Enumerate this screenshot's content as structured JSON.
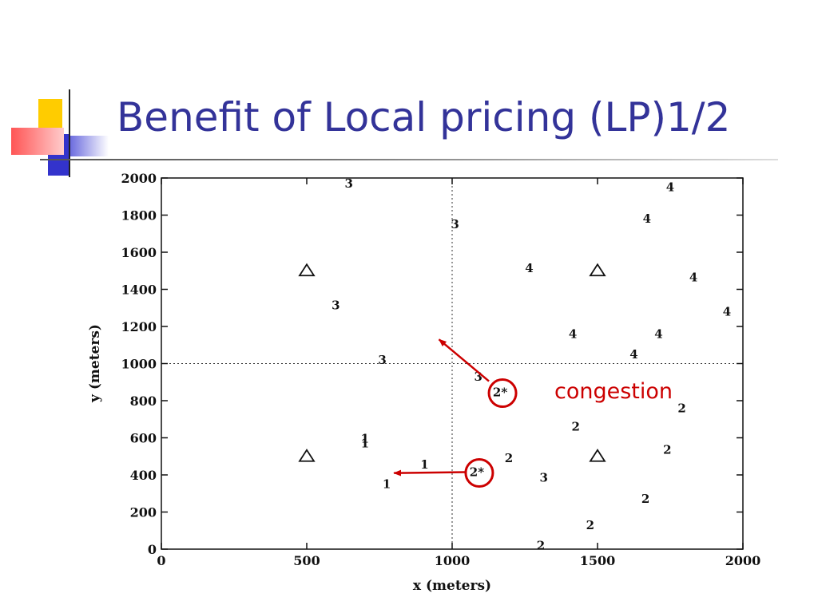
{
  "slide": {
    "title": "Benefit of Local pricing (LP)1/2"
  },
  "colors": {
    "title": "#333399",
    "annotation": "#cc0000"
  },
  "chart_data": {
    "type": "scatter",
    "xlabel": "x (meters)",
    "ylabel": "y (meters)",
    "xlim": [
      0,
      2000
    ],
    "ylim": [
      0,
      2000
    ],
    "x_ticks": [
      "0",
      "500",
      "1000",
      "1500",
      "2000"
    ],
    "y_ticks": [
      "0",
      "200",
      "400",
      "600",
      "800",
      "1000",
      "1200",
      "1400",
      "1600",
      "1800",
      "2000"
    ],
    "grid": "dotted lines at x=1000 and y=1000",
    "markers": [
      {
        "x": 645,
        "y": 1970,
        "label": "3"
      },
      {
        "x": 1010,
        "y": 1750,
        "label": "3"
      },
      {
        "x": 600,
        "y": 1315,
        "label": "3"
      },
      {
        "x": 760,
        "y": 1020,
        "label": "3"
      },
      {
        "x": 1090,
        "y": 930,
        "label": "3"
      },
      {
        "x": 1315,
        "y": 385,
        "label": "3"
      },
      {
        "x": 1750,
        "y": 1950,
        "label": "4"
      },
      {
        "x": 1670,
        "y": 1780,
        "label": "4"
      },
      {
        "x": 1265,
        "y": 1515,
        "label": "4"
      },
      {
        "x": 1830,
        "y": 1465,
        "label": "4"
      },
      {
        "x": 1945,
        "y": 1280,
        "label": "4"
      },
      {
        "x": 1415,
        "y": 1160,
        "label": "4"
      },
      {
        "x": 1710,
        "y": 1160,
        "label": "4"
      },
      {
        "x": 1625,
        "y": 1050,
        "label": "4"
      },
      {
        "x": 1165,
        "y": 845,
        "label": "2*"
      },
      {
        "x": 1085,
        "y": 415,
        "label": "2*"
      },
      {
        "x": 1195,
        "y": 490,
        "label": "2"
      },
      {
        "x": 1425,
        "y": 660,
        "label": "2"
      },
      {
        "x": 1790,
        "y": 760,
        "label": "2"
      },
      {
        "x": 1740,
        "y": 535,
        "label": "2"
      },
      {
        "x": 1665,
        "y": 270,
        "label": "2"
      },
      {
        "x": 1475,
        "y": 130,
        "label": "2"
      },
      {
        "x": 1305,
        "y": 20,
        "label": "2"
      },
      {
        "x": 700,
        "y": 595,
        "label": "1"
      },
      {
        "x": 700,
        "y": 570,
        "label": "1"
      },
      {
        "x": 905,
        "y": 455,
        "label": "1"
      },
      {
        "x": 775,
        "y": 350,
        "label": "1"
      }
    ],
    "triangles": [
      {
        "x": 500,
        "y": 1500
      },
      {
        "x": 1500,
        "y": 1500
      },
      {
        "x": 500,
        "y": 500
      },
      {
        "x": 1500,
        "y": 500
      }
    ],
    "highlighted": [
      {
        "x": 1165,
        "y": 845
      },
      {
        "x": 1085,
        "y": 415
      }
    ],
    "annotations": [
      {
        "text": "congestion",
        "from": {
          "x": 1165,
          "y": 845
        },
        "to": {
          "x": 955,
          "y": 1130
        }
      },
      {
        "from": {
          "x": 1085,
          "y": 415
        },
        "to": {
          "x": 800,
          "y": 410
        }
      }
    ]
  }
}
